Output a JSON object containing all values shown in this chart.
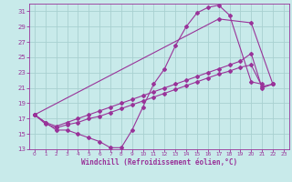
{
  "background_color": "#c8eaea",
  "grid_color": "#a8d0d0",
  "line_color": "#993399",
  "marker_color": "#993399",
  "xlabel": "Windchill (Refroidissement éolien,°C)",
  "xlabel_color": "#993399",
  "tick_color": "#993399",
  "xlim": [
    -0.5,
    23.5
  ],
  "ylim": [
    13,
    32
  ],
  "yticks": [
    13,
    15,
    17,
    19,
    21,
    23,
    25,
    27,
    29,
    31
  ],
  "xticks": [
    0,
    1,
    2,
    3,
    4,
    5,
    6,
    7,
    8,
    9,
    10,
    11,
    12,
    13,
    14,
    15,
    16,
    17,
    18,
    19,
    20,
    21,
    22,
    23
  ],
  "curve1_x": [
    0,
    1,
    2,
    3,
    4,
    5,
    6,
    7,
    8,
    9,
    10,
    11,
    12,
    13,
    14,
    15,
    16,
    17,
    18,
    20,
    21
  ],
  "curve1_y": [
    17.5,
    16.5,
    15.5,
    15.5,
    15.0,
    14.5,
    14.0,
    13.2,
    13.2,
    15.5,
    18.5,
    21.5,
    23.5,
    26.5,
    29.0,
    30.8,
    31.5,
    31.8,
    30.5,
    21.8,
    21.5
  ],
  "curve2_x": [
    0,
    17,
    20,
    22
  ],
  "curve2_y": [
    17.5,
    30.0,
    29.5,
    21.5
  ],
  "curve3_x": [
    0,
    1,
    2,
    3,
    4,
    5,
    6,
    7,
    8,
    9,
    10,
    11,
    12,
    13,
    14,
    15,
    16,
    17,
    18,
    19,
    20,
    21,
    22
  ],
  "curve3_y": [
    17.5,
    16.3,
    15.8,
    16.2,
    16.5,
    17.0,
    17.3,
    17.8,
    18.3,
    18.8,
    19.3,
    19.8,
    20.3,
    20.8,
    21.3,
    21.8,
    22.3,
    22.8,
    23.2,
    23.7,
    24.0,
    21.2,
    21.5
  ],
  "curve4_x": [
    0,
    1,
    2,
    3,
    4,
    5,
    6,
    7,
    8,
    9,
    10,
    11,
    12,
    13,
    14,
    15,
    16,
    17,
    18,
    19,
    20,
    21,
    22
  ],
  "curve4_y": [
    17.5,
    16.5,
    16.0,
    16.5,
    17.0,
    17.5,
    18.0,
    18.5,
    19.0,
    19.5,
    20.0,
    20.5,
    21.0,
    21.5,
    22.0,
    22.5,
    23.0,
    23.5,
    24.0,
    24.5,
    25.5,
    21.0,
    21.5
  ]
}
